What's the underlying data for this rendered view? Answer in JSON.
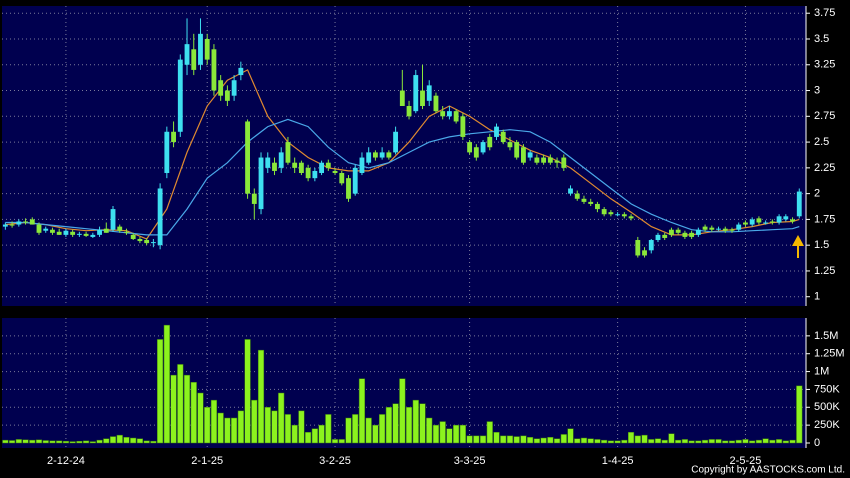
{
  "chart_data": {
    "type": "candlestick",
    "up_color": "#3ee0f0",
    "down_color": "#8be83a",
    "grid": true,
    "xlim": [
      -0.5,
      119
    ],
    "xticks": [
      {
        "value": 9,
        "label": "2-12-24"
      },
      {
        "value": 30,
        "label": "2-1-25"
      },
      {
        "value": 49,
        "label": "3-2-25"
      },
      {
        "value": 69,
        "label": "3-3-25"
      },
      {
        "value": 91,
        "label": "1-4-25"
      },
      {
        "value": 110,
        "label": "2-5-25"
      }
    ],
    "ylim": [
      0.91,
      3.82
    ],
    "yticks": [
      3.75,
      3.5,
      3.25,
      3,
      2.75,
      2.5,
      2.25,
      2,
      1.75,
      1.5,
      1.25,
      1
    ],
    "candles": [
      [
        1.68,
        1.72,
        1.65,
        1.7
      ],
      [
        1.7,
        1.73,
        1.67,
        1.69
      ],
      [
        1.7,
        1.75,
        1.68,
        1.73
      ],
      [
        1.73,
        1.76,
        1.7,
        1.72
      ],
      [
        1.75,
        1.77,
        1.7,
        1.7
      ],
      [
        1.7,
        1.72,
        1.6,
        1.62
      ],
      [
        1.64,
        1.68,
        1.62,
        1.66
      ],
      [
        1.65,
        1.67,
        1.6,
        1.62
      ],
      [
        1.63,
        1.66,
        1.6,
        1.6
      ],
      [
        1.6,
        1.66,
        1.58,
        1.64
      ],
      [
        1.63,
        1.65,
        1.58,
        1.6
      ],
      [
        1.6,
        1.63,
        1.58,
        1.61
      ],
      [
        1.61,
        1.63,
        1.58,
        1.59
      ],
      [
        1.58,
        1.62,
        1.57,
        1.6
      ],
      [
        1.6,
        1.68,
        1.58,
        1.65
      ],
      [
        1.66,
        1.72,
        1.62,
        1.62
      ],
      [
        1.65,
        1.88,
        1.63,
        1.85
      ],
      [
        1.68,
        1.7,
        1.62,
        1.64
      ],
      [
        1.63,
        1.66,
        1.6,
        1.62
      ],
      [
        1.6,
        1.62,
        1.55,
        1.56
      ],
      [
        1.56,
        1.58,
        1.52,
        1.54
      ],
      [
        1.55,
        1.57,
        1.5,
        1.52
      ],
      [
        1.52,
        1.56,
        1.48,
        1.53
      ],
      [
        1.5,
        2.1,
        1.46,
        2.05
      ],
      [
        2.2,
        2.65,
        2.15,
        2.6
      ],
      [
        2.6,
        2.7,
        2.45,
        2.5
      ],
      [
        2.6,
        3.35,
        2.55,
        3.3
      ],
      [
        3.25,
        3.7,
        3.15,
        3.45
      ],
      [
        3.4,
        3.55,
        3.15,
        3.2
      ],
      [
        3.25,
        3.7,
        3.2,
        3.55
      ],
      [
        3.5,
        3.55,
        3.25,
        3.3
      ],
      [
        3.4,
        3.45,
        2.95,
        3.0
      ],
      [
        3.1,
        3.15,
        2.9,
        2.95
      ],
      [
        3.0,
        3.05,
        2.85,
        2.9
      ],
      [
        2.95,
        3.15,
        2.9,
        3.1
      ],
      [
        3.15,
        3.28,
        3.1,
        3.22
      ],
      [
        2.7,
        2.72,
        1.95,
        2.0
      ],
      [
        2.0,
        2.05,
        1.75,
        1.9
      ],
      [
        1.85,
        2.4,
        1.8,
        2.35
      ],
      [
        2.25,
        2.4,
        2.2,
        2.35
      ],
      [
        2.3,
        2.35,
        2.18,
        2.22
      ],
      [
        2.25,
        2.45,
        2.2,
        2.4
      ],
      [
        2.5,
        2.55,
        2.28,
        2.3
      ],
      [
        2.3,
        2.35,
        2.2,
        2.25
      ],
      [
        2.3,
        2.32,
        2.18,
        2.2
      ],
      [
        2.25,
        2.28,
        2.12,
        2.15
      ],
      [
        2.15,
        2.25,
        2.12,
        2.22
      ],
      [
        2.2,
        2.32,
        2.18,
        2.3
      ],
      [
        2.3,
        2.33,
        2.22,
        2.25
      ],
      [
        2.22,
        2.25,
        2.18,
        2.2
      ],
      [
        2.2,
        2.22,
        2.08,
        2.1
      ],
      [
        2.15,
        2.18,
        1.92,
        1.95
      ],
      [
        2.0,
        2.28,
        1.98,
        2.25
      ],
      [
        2.2,
        2.4,
        2.18,
        2.35
      ],
      [
        2.3,
        2.45,
        2.28,
        2.4
      ],
      [
        2.4,
        2.42,
        2.32,
        2.35
      ],
      [
        2.35,
        2.45,
        2.33,
        2.4
      ],
      [
        2.4,
        2.42,
        2.33,
        2.35
      ],
      [
        2.4,
        2.65,
        2.38,
        2.6
      ],
      [
        3.0,
        3.2,
        2.85,
        2.85
      ],
      [
        2.85,
        2.9,
        2.72,
        2.75
      ],
      [
        2.8,
        3.2,
        2.78,
        3.15
      ],
      [
        3.0,
        3.25,
        2.82,
        2.85
      ],
      [
        2.9,
        3.1,
        2.85,
        3.05
      ],
      [
        2.95,
        2.98,
        2.78,
        2.8
      ],
      [
        2.8,
        2.85,
        2.72,
        2.75
      ],
      [
        2.75,
        2.85,
        2.72,
        2.8
      ],
      [
        2.8,
        2.82,
        2.68,
        2.7
      ],
      [
        2.75,
        2.78,
        2.52,
        2.55
      ],
      [
        2.5,
        2.52,
        2.38,
        2.4
      ],
      [
        2.45,
        2.48,
        2.32,
        2.35
      ],
      [
        2.4,
        2.52,
        2.38,
        2.5
      ],
      [
        2.55,
        2.58,
        2.42,
        2.45
      ],
      [
        2.55,
        2.68,
        2.52,
        2.65
      ],
      [
        2.6,
        2.62,
        2.48,
        2.5
      ],
      [
        2.5,
        2.55,
        2.42,
        2.45
      ],
      [
        2.5,
        2.52,
        2.33,
        2.35
      ],
      [
        2.45,
        2.48,
        2.28,
        2.3
      ],
      [
        2.35,
        2.42,
        2.32,
        2.4
      ],
      [
        2.35,
        2.38,
        2.28,
        2.3
      ],
      [
        2.35,
        2.38,
        2.28,
        2.3
      ],
      [
        2.35,
        2.38,
        2.28,
        2.3
      ],
      [
        2.32,
        2.35,
        2.25,
        2.3
      ],
      [
        2.35,
        2.38,
        2.22,
        2.25
      ],
      [
        2.0,
        2.08,
        1.98,
        2.05
      ],
      [
        2.0,
        2.03,
        1.93,
        1.95
      ],
      [
        1.95,
        1.98,
        1.9,
        1.92
      ],
      [
        1.92,
        1.95,
        1.88,
        1.9
      ],
      [
        1.9,
        1.92,
        1.82,
        1.85
      ],
      [
        1.85,
        1.87,
        1.78,
        1.8
      ],
      [
        1.82,
        1.84,
        1.78,
        1.8
      ],
      [
        1.8,
        1.82,
        1.78,
        1.8
      ],
      [
        1.8,
        1.82,
        1.76,
        1.78
      ],
      [
        1.78,
        1.8,
        1.74,
        1.76
      ],
      [
        1.55,
        1.58,
        1.38,
        1.4
      ],
      [
        1.45,
        1.48,
        1.38,
        1.4
      ],
      [
        1.45,
        1.56,
        1.42,
        1.55
      ],
      [
        1.55,
        1.62,
        1.53,
        1.6
      ],
      [
        1.6,
        1.62,
        1.55,
        1.57
      ],
      [
        1.65,
        1.67,
        1.58,
        1.6
      ],
      [
        1.65,
        1.67,
        1.6,
        1.62
      ],
      [
        1.62,
        1.64,
        1.56,
        1.58
      ],
      [
        1.62,
        1.64,
        1.56,
        1.58
      ],
      [
        1.6,
        1.67,
        1.58,
        1.65
      ],
      [
        1.68,
        1.7,
        1.63,
        1.65
      ],
      [
        1.67,
        1.69,
        1.63,
        1.65
      ],
      [
        1.66,
        1.68,
        1.64,
        1.66
      ],
      [
        1.66,
        1.68,
        1.62,
        1.64
      ],
      [
        1.65,
        1.67,
        1.62,
        1.64
      ],
      [
        1.65,
        1.72,
        1.63,
        1.7
      ],
      [
        1.72,
        1.74,
        1.68,
        1.7
      ],
      [
        1.7,
        1.77,
        1.68,
        1.75
      ],
      [
        1.76,
        1.78,
        1.7,
        1.72
      ],
      [
        1.72,
        1.74,
        1.7,
        1.72
      ],
      [
        1.73,
        1.75,
        1.7,
        1.72
      ],
      [
        1.72,
        1.8,
        1.7,
        1.78
      ],
      [
        1.75,
        1.8,
        1.73,
        1.78
      ],
      [
        1.75,
        1.77,
        1.71,
        1.73
      ],
      [
        1.78,
        2.05,
        1.76,
        2.02
      ]
    ],
    "moving_averages": [
      {
        "color": "#e08a30",
        "x": [
          0,
          3,
          6,
          9,
          12,
          15,
          18,
          21,
          24,
          27,
          30,
          33,
          36,
          39,
          42,
          45,
          48,
          51,
          54,
          57,
          60,
          63,
          66,
          69,
          72,
          75,
          78,
          81,
          84,
          87,
          90,
          93,
          96,
          99,
          102,
          105,
          108,
          111,
          114,
          117,
          118
        ],
        "values": [
          1.7,
          1.72,
          1.7,
          1.66,
          1.64,
          1.65,
          1.64,
          1.56,
          1.85,
          2.4,
          2.85,
          3.1,
          3.2,
          2.75,
          2.5,
          2.35,
          2.25,
          2.22,
          2.22,
          2.3,
          2.5,
          2.75,
          2.85,
          2.75,
          2.62,
          2.52,
          2.42,
          2.35,
          2.25,
          2.1,
          1.95,
          1.82,
          1.68,
          1.6,
          1.6,
          1.63,
          1.65,
          1.68,
          1.72,
          1.73,
          1.75
        ]
      },
      {
        "color": "#4aa8e8",
        "x": [
          0,
          3,
          6,
          9,
          12,
          15,
          18,
          21,
          24,
          27,
          30,
          33,
          36,
          39,
          42,
          45,
          48,
          51,
          54,
          57,
          60,
          63,
          66,
          69,
          72,
          75,
          78,
          81,
          84,
          87,
          90,
          93,
          96,
          99,
          102,
          105,
          108,
          111,
          114,
          117,
          118
        ],
        "values": [
          1.72,
          1.72,
          1.7,
          1.68,
          1.66,
          1.64,
          1.62,
          1.6,
          1.6,
          1.85,
          2.15,
          2.3,
          2.5,
          2.65,
          2.72,
          2.65,
          2.45,
          2.3,
          2.25,
          2.3,
          2.4,
          2.5,
          2.55,
          2.58,
          2.6,
          2.62,
          2.6,
          2.5,
          2.35,
          2.2,
          2.05,
          1.9,
          1.8,
          1.72,
          1.65,
          1.63,
          1.63,
          1.64,
          1.65,
          1.66,
          1.68
        ]
      }
    ],
    "volume": {
      "color": "#8cf21e",
      "ylim": [
        0,
        1750000
      ],
      "yticks": [
        {
          "value": 1500000,
          "label": "1.5M"
        },
        {
          "value": 1250000,
          "label": "1.25M"
        },
        {
          "value": 1000000,
          "label": "1M"
        },
        {
          "value": 750000,
          "label": "750K"
        },
        {
          "value": 500000,
          "label": "500K"
        },
        {
          "value": 250000,
          "label": "250K"
        },
        0
      ],
      "values": [
        40000,
        35000,
        50000,
        45000,
        40000,
        45000,
        35000,
        30000,
        30000,
        25000,
        20000,
        25000,
        30000,
        20000,
        40000,
        60000,
        90000,
        110000,
        80000,
        70000,
        60000,
        30000,
        25000,
        1450000,
        1650000,
        950000,
        1100000,
        950000,
        850000,
        700000,
        500000,
        600000,
        420000,
        350000,
        350000,
        450000,
        1450000,
        600000,
        1300000,
        500000,
        450000,
        700000,
        400000,
        250000,
        450000,
        150000,
        200000,
        250000,
        400000,
        50000,
        50000,
        350000,
        400000,
        900000,
        350000,
        250000,
        400000,
        500000,
        550000,
        900000,
        500000,
        600000,
        550000,
        350000,
        250000,
        300000,
        200000,
        250000,
        250000,
        100000,
        100000,
        100000,
        300000,
        150000,
        100000,
        100000,
        90000,
        100000,
        80000,
        60000,
        70000,
        80000,
        60000,
        120000,
        200000,
        60000,
        70000,
        60000,
        50000,
        40000,
        30000,
        30000,
        40000,
        150000,
        100000,
        110000,
        50000,
        60000,
        40000,
        130000,
        40000,
        50000,
        30000,
        30000,
        40000,
        50000,
        50000,
        30000,
        30000,
        40000,
        50000,
        30000,
        40000,
        60000,
        40000,
        50000,
        30000,
        40000,
        800000
      ]
    },
    "credit": "Copyright by AASTOCKS.com Ltd."
  }
}
